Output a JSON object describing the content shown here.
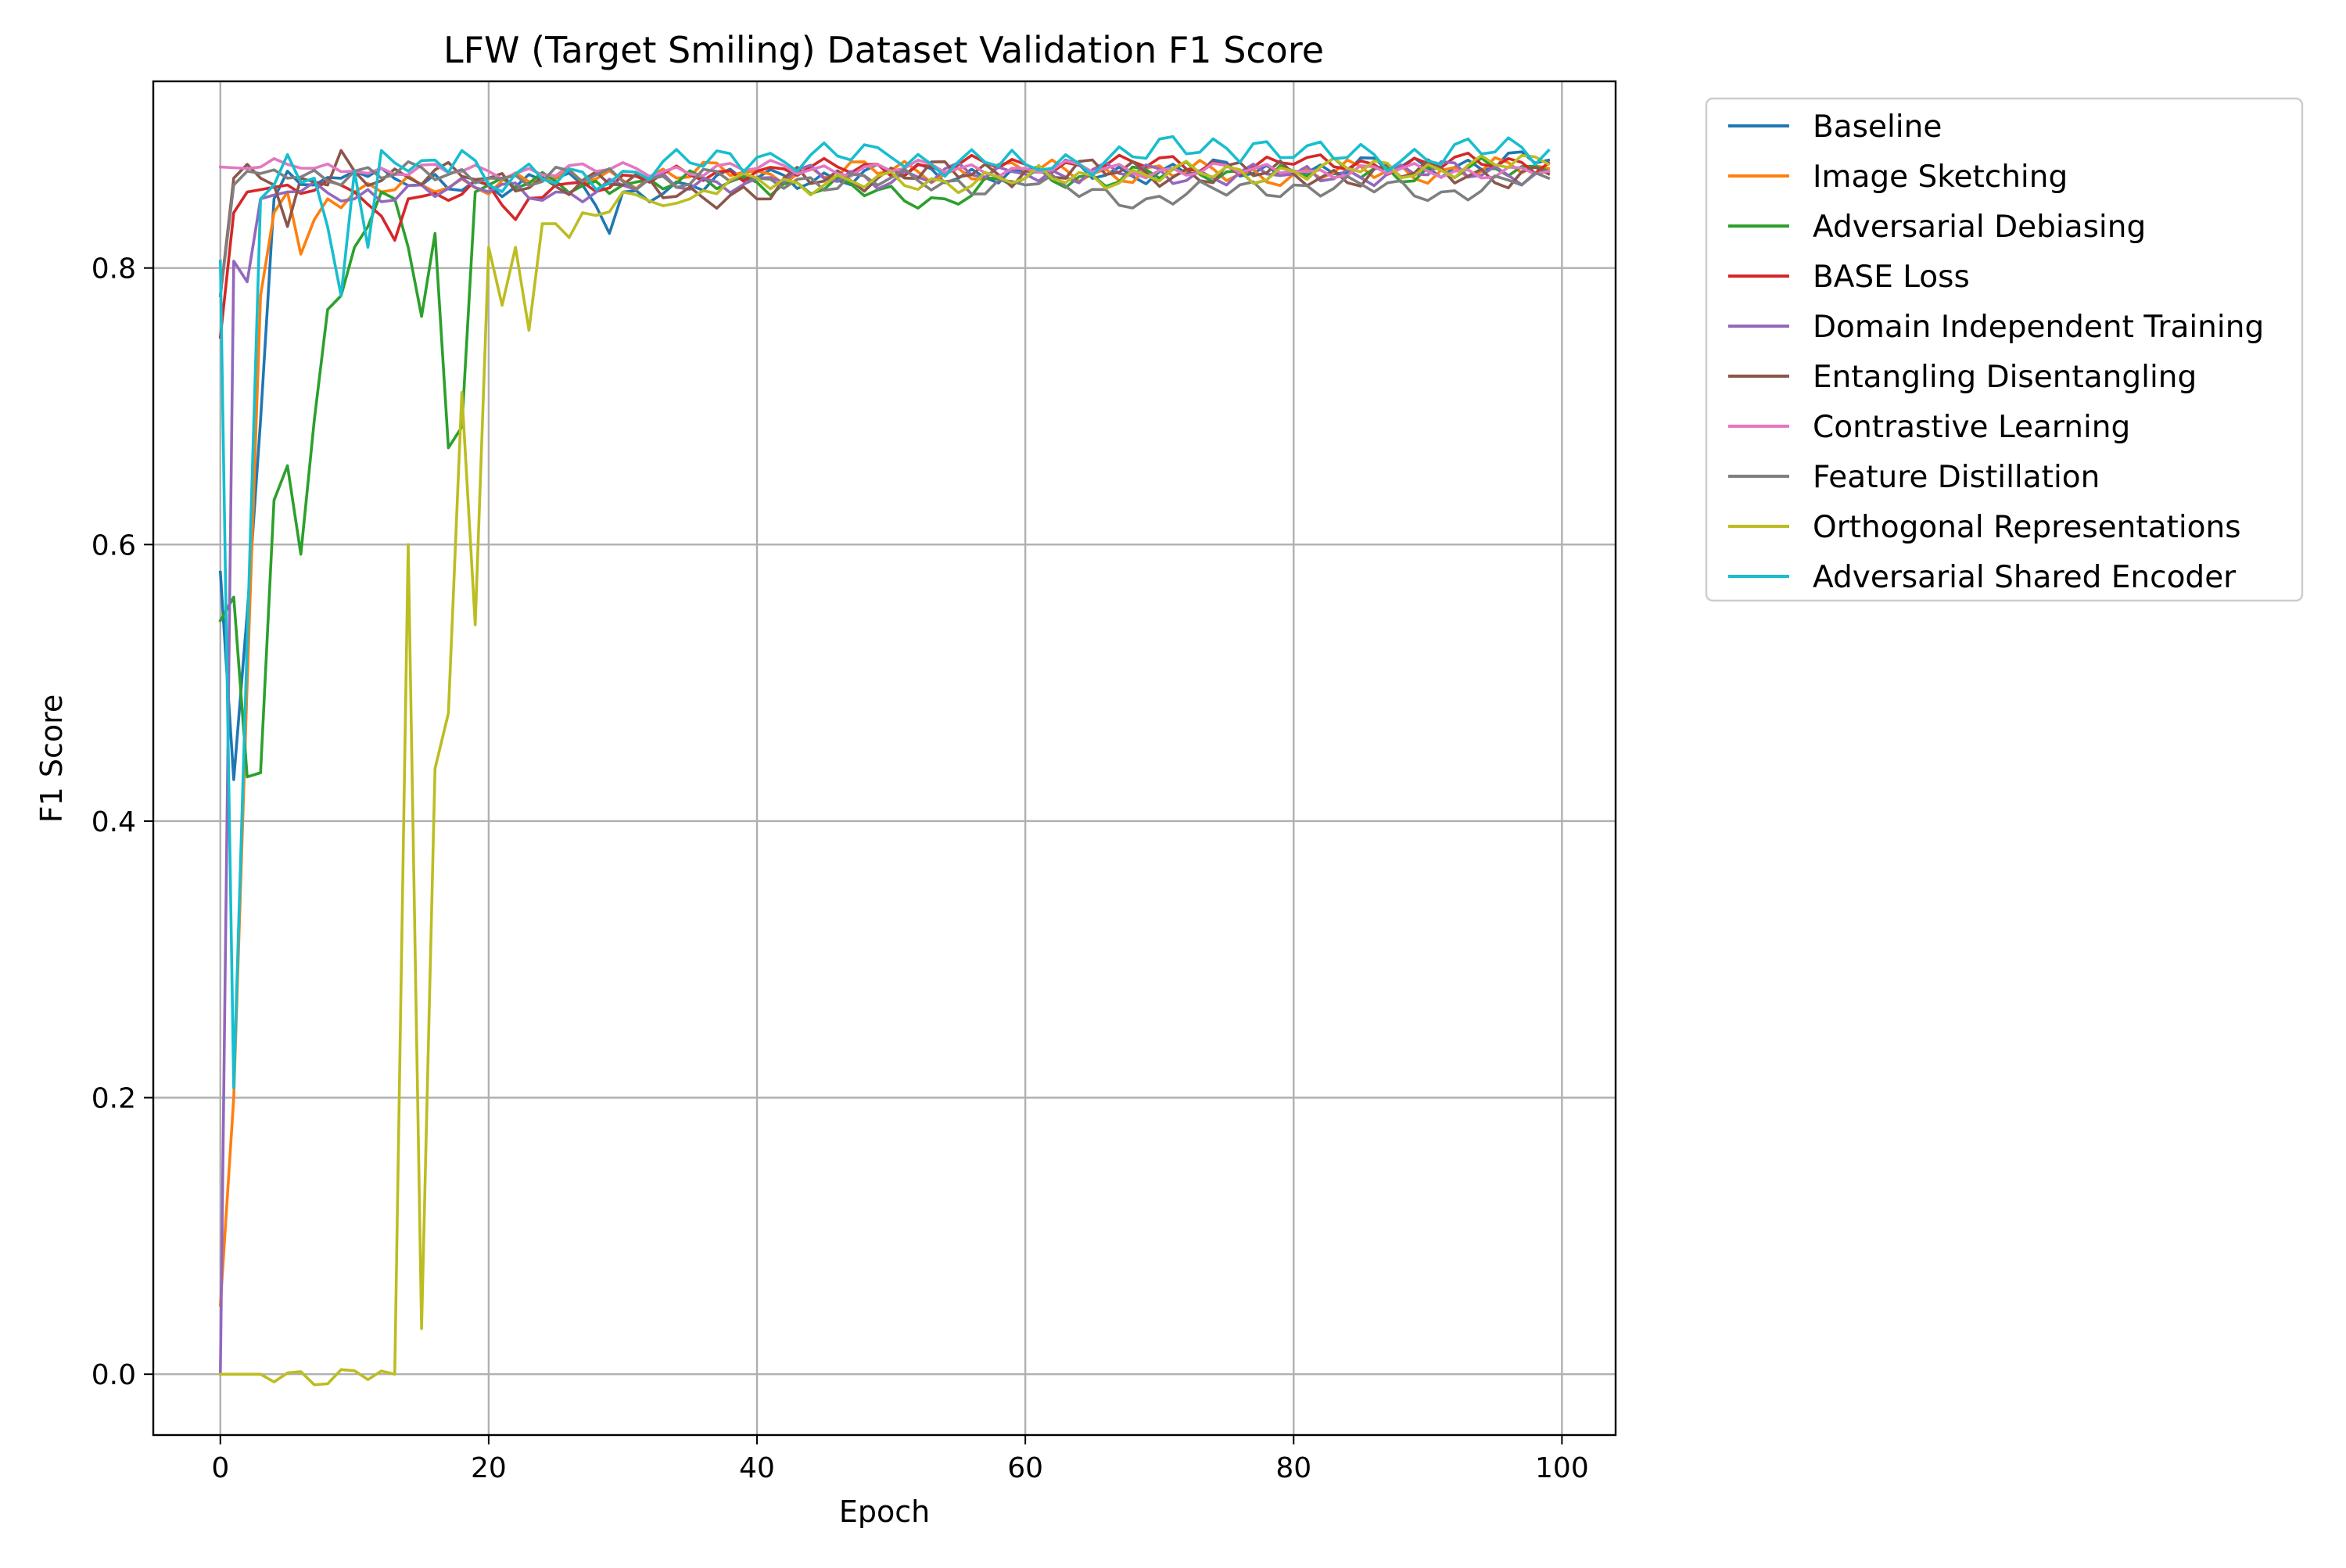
{
  "chart_data": {
    "type": "line",
    "title": "LFW (Target Smiling) Dataset Validation F1 Score",
    "xlabel": "Epoch",
    "ylabel": "F1 Score",
    "xlim": [
      -5,
      104
    ],
    "ylim": [
      -0.044,
      0.935
    ],
    "x_ticks": [
      0,
      20,
      40,
      60,
      80,
      100
    ],
    "x_tick_labels": [
      "0",
      "20",
      "40",
      "60",
      "80",
      "100"
    ],
    "y_ticks": [
      0.0,
      0.2,
      0.4,
      0.6,
      0.8
    ],
    "y_tick_labels": [
      "0.0",
      "0.2",
      "0.4",
      "0.6",
      "0.8"
    ],
    "grid": true,
    "legend_position": "outside upper right",
    "series": [
      {
        "name": "Baseline",
        "color": "#1f77b4",
        "keypoints": [
          [
            0,
            0.58
          ],
          [
            1,
            0.43
          ],
          [
            2,
            0.55
          ],
          [
            3,
            0.69
          ],
          [
            4,
            0.85
          ],
          [
            5,
            0.87
          ],
          [
            7,
            0.86
          ],
          [
            10,
            0.87
          ],
          [
            15,
            0.86
          ],
          [
            20,
            0.86
          ],
          [
            25,
            0.865
          ],
          [
            27,
            0.86
          ],
          [
            28,
            0.845
          ],
          [
            29,
            0.825
          ],
          [
            30,
            0.855
          ],
          [
            35,
            0.86
          ],
          [
            40,
            0.865
          ],
          [
            60,
            0.87
          ],
          [
            80,
            0.87
          ],
          [
            99,
            0.878
          ]
        ],
        "noise": 0.006
      },
      {
        "name": "Image Sketching",
        "color": "#ff7f0e",
        "keypoints": [
          [
            0,
            0.05
          ],
          [
            1,
            0.2
          ],
          [
            2,
            0.5
          ],
          [
            3,
            0.78
          ],
          [
            4,
            0.84
          ],
          [
            5,
            0.855
          ],
          [
            6,
            0.81
          ],
          [
            7,
            0.835
          ],
          [
            8,
            0.85
          ],
          [
            15,
            0.86
          ],
          [
            25,
            0.865
          ],
          [
            40,
            0.87
          ],
          [
            60,
            0.87
          ],
          [
            80,
            0.868
          ],
          [
            99,
            0.872
          ]
        ],
        "noise": 0.006
      },
      {
        "name": "Adversarial Debiasing",
        "color": "#2ca02c",
        "keypoints": [
          [
            0,
            0.545
          ],
          [
            1,
            0.562
          ],
          [
            2,
            0.432
          ],
          [
            3,
            0.435
          ],
          [
            4,
            0.632
          ],
          [
            5,
            0.657
          ],
          [
            6,
            0.593
          ],
          [
            7,
            0.69
          ],
          [
            8,
            0.77
          ],
          [
            9,
            0.78
          ],
          [
            10,
            0.815
          ],
          [
            11,
            0.83
          ],
          [
            12,
            0.855
          ],
          [
            13,
            0.85
          ],
          [
            14,
            0.815
          ],
          [
            15,
            0.765
          ],
          [
            16,
            0.825
          ],
          [
            17,
            0.67
          ],
          [
            18,
            0.685
          ],
          [
            19,
            0.855
          ],
          [
            20,
            0.86
          ],
          [
            30,
            0.86
          ],
          [
            40,
            0.862
          ],
          [
            54,
            0.85
          ],
          [
            60,
            0.865
          ],
          [
            80,
            0.87
          ],
          [
            99,
            0.87
          ]
        ],
        "noise": 0.006
      },
      {
        "name": "BASE Loss",
        "color": "#d62728",
        "keypoints": [
          [
            0,
            0.75
          ],
          [
            1,
            0.84
          ],
          [
            2,
            0.855
          ],
          [
            5,
            0.86
          ],
          [
            10,
            0.855
          ],
          [
            13,
            0.82
          ],
          [
            14,
            0.85
          ],
          [
            20,
            0.86
          ],
          [
            22,
            0.835
          ],
          [
            25,
            0.86
          ],
          [
            40,
            0.87
          ],
          [
            60,
            0.875
          ],
          [
            80,
            0.875
          ],
          [
            99,
            0.876
          ]
        ],
        "noise": 0.005
      },
      {
        "name": "Domain Independent Training",
        "color": "#9467bd",
        "keypoints": [
          [
            0,
            0.0
          ],
          [
            1,
            0.805
          ],
          [
            2,
            0.79
          ],
          [
            3,
            0.85
          ],
          [
            5,
            0.855
          ],
          [
            10,
            0.85
          ],
          [
            15,
            0.86
          ],
          [
            20,
            0.855
          ],
          [
            25,
            0.855
          ],
          [
            40,
            0.865
          ],
          [
            60,
            0.868
          ],
          [
            80,
            0.868
          ],
          [
            99,
            0.87
          ]
        ],
        "noise": 0.006
      },
      {
        "name": "Entangling Disentangling",
        "color": "#8c564b",
        "keypoints": [
          [
            0,
            0.78
          ],
          [
            1,
            0.865
          ],
          [
            2,
            0.875
          ],
          [
            3,
            0.865
          ],
          [
            4,
            0.86
          ],
          [
            5,
            0.83
          ],
          [
            6,
            0.865
          ],
          [
            8,
            0.86
          ],
          [
            9,
            0.885
          ],
          [
            10,
            0.87
          ],
          [
            20,
            0.865
          ],
          [
            30,
            0.86
          ],
          [
            41,
            0.85
          ],
          [
            42,
            0.865
          ],
          [
            60,
            0.87
          ],
          [
            80,
            0.868
          ],
          [
            99,
            0.868
          ]
        ],
        "noise": 0.007
      },
      {
        "name": "Contrastive Learning",
        "color": "#e377c2",
        "keypoints": [
          [
            0,
            0.873
          ],
          [
            2,
            0.872
          ],
          [
            5,
            0.875
          ],
          [
            10,
            0.87
          ],
          [
            20,
            0.87
          ],
          [
            40,
            0.872
          ],
          [
            60,
            0.872
          ],
          [
            80,
            0.87
          ],
          [
            99,
            0.87
          ]
        ],
        "noise": 0.004
      },
      {
        "name": "Feature Distillation",
        "color": "#7f7f7f",
        "keypoints": [
          [
            0,
            0.78
          ],
          [
            1,
            0.86
          ],
          [
            2,
            0.87
          ],
          [
            5,
            0.865
          ],
          [
            10,
            0.87
          ],
          [
            20,
            0.865
          ],
          [
            40,
            0.865
          ],
          [
            60,
            0.86
          ],
          [
            69,
            0.85
          ],
          [
            80,
            0.86
          ],
          [
            91,
            0.855
          ],
          [
            99,
            0.865
          ]
        ],
        "noise": 0.006
      },
      {
        "name": "Orthogonal Representations",
        "color": "#bcbd22",
        "keypoints": [
          [
            0,
            0.0
          ],
          [
            13,
            0.0
          ],
          [
            14,
            0.6
          ],
          [
            15,
            0.033
          ],
          [
            16,
            0.438
          ],
          [
            17,
            0.478
          ],
          [
            18,
            0.71
          ],
          [
            19,
            0.542
          ],
          [
            20,
            0.815
          ],
          [
            21,
            0.773
          ],
          [
            22,
            0.815
          ],
          [
            23,
            0.755
          ],
          [
            24,
            0.832
          ],
          [
            25,
            0.832
          ],
          [
            26,
            0.822
          ],
          [
            27,
            0.84
          ],
          [
            28,
            0.838
          ],
          [
            30,
            0.855
          ],
          [
            33,
            0.845
          ],
          [
            35,
            0.85
          ],
          [
            40,
            0.865
          ],
          [
            45,
            0.86
          ],
          [
            60,
            0.865
          ],
          [
            80,
            0.87
          ],
          [
            99,
            0.875
          ]
        ],
        "noise": 0.006
      },
      {
        "name": "Adversarial Shared Encoder",
        "color": "#17becf",
        "keypoints": [
          [
            0,
            0.805
          ],
          [
            1,
            0.207
          ],
          [
            2,
            0.53
          ],
          [
            3,
            0.85
          ],
          [
            4,
            0.86
          ],
          [
            5,
            0.882
          ],
          [
            7,
            0.865
          ],
          [
            9,
            0.78
          ],
          [
            10,
            0.87
          ],
          [
            11,
            0.815
          ],
          [
            12,
            0.885
          ],
          [
            14,
            0.87
          ],
          [
            18,
            0.885
          ],
          [
            20,
            0.86
          ],
          [
            30,
            0.87
          ],
          [
            40,
            0.88
          ],
          [
            50,
            0.88
          ],
          [
            60,
            0.875
          ],
          [
            77,
            0.89
          ],
          [
            80,
            0.88
          ],
          [
            99,
            0.885
          ]
        ],
        "noise": 0.008
      }
    ]
  }
}
